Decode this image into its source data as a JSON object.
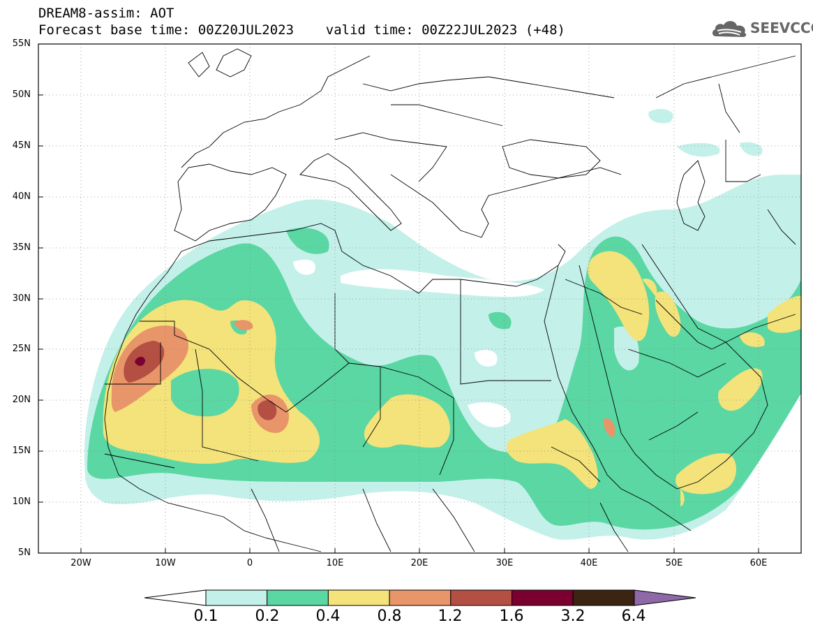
{
  "header": {
    "title_line1": "DREAM8-assim: AOT",
    "title_line2": "Forecast base time: 00Z20JUL2023    valid time: 00Z22JUL2023 (+48)"
  },
  "logo": {
    "text": "SEEVCCC",
    "icon": "cloud-icon"
  },
  "map": {
    "lat_ticks": [
      "55N",
      "50N",
      "45N",
      "40N",
      "35N",
      "30N",
      "25N",
      "20N",
      "15N",
      "10N",
      "5N"
    ],
    "lon_ticks": [
      "20W",
      "10W",
      "0",
      "10E",
      "20E",
      "30E",
      "40E",
      "50E",
      "60E"
    ],
    "lon_range": [
      -25,
      65
    ],
    "lat_range": [
      5,
      55
    ]
  },
  "colorbar": {
    "labels": [
      "0.1",
      "0.2",
      "0.4",
      "0.8",
      "1.2",
      "1.6",
      "3.2",
      "6.4"
    ],
    "colors": [
      "#c4f0ea",
      "#5ad7a3",
      "#f3e37a",
      "#e8956a",
      "#b34f43",
      "#7a0030",
      "#3a2512",
      "#8f68a8"
    ]
  }
}
